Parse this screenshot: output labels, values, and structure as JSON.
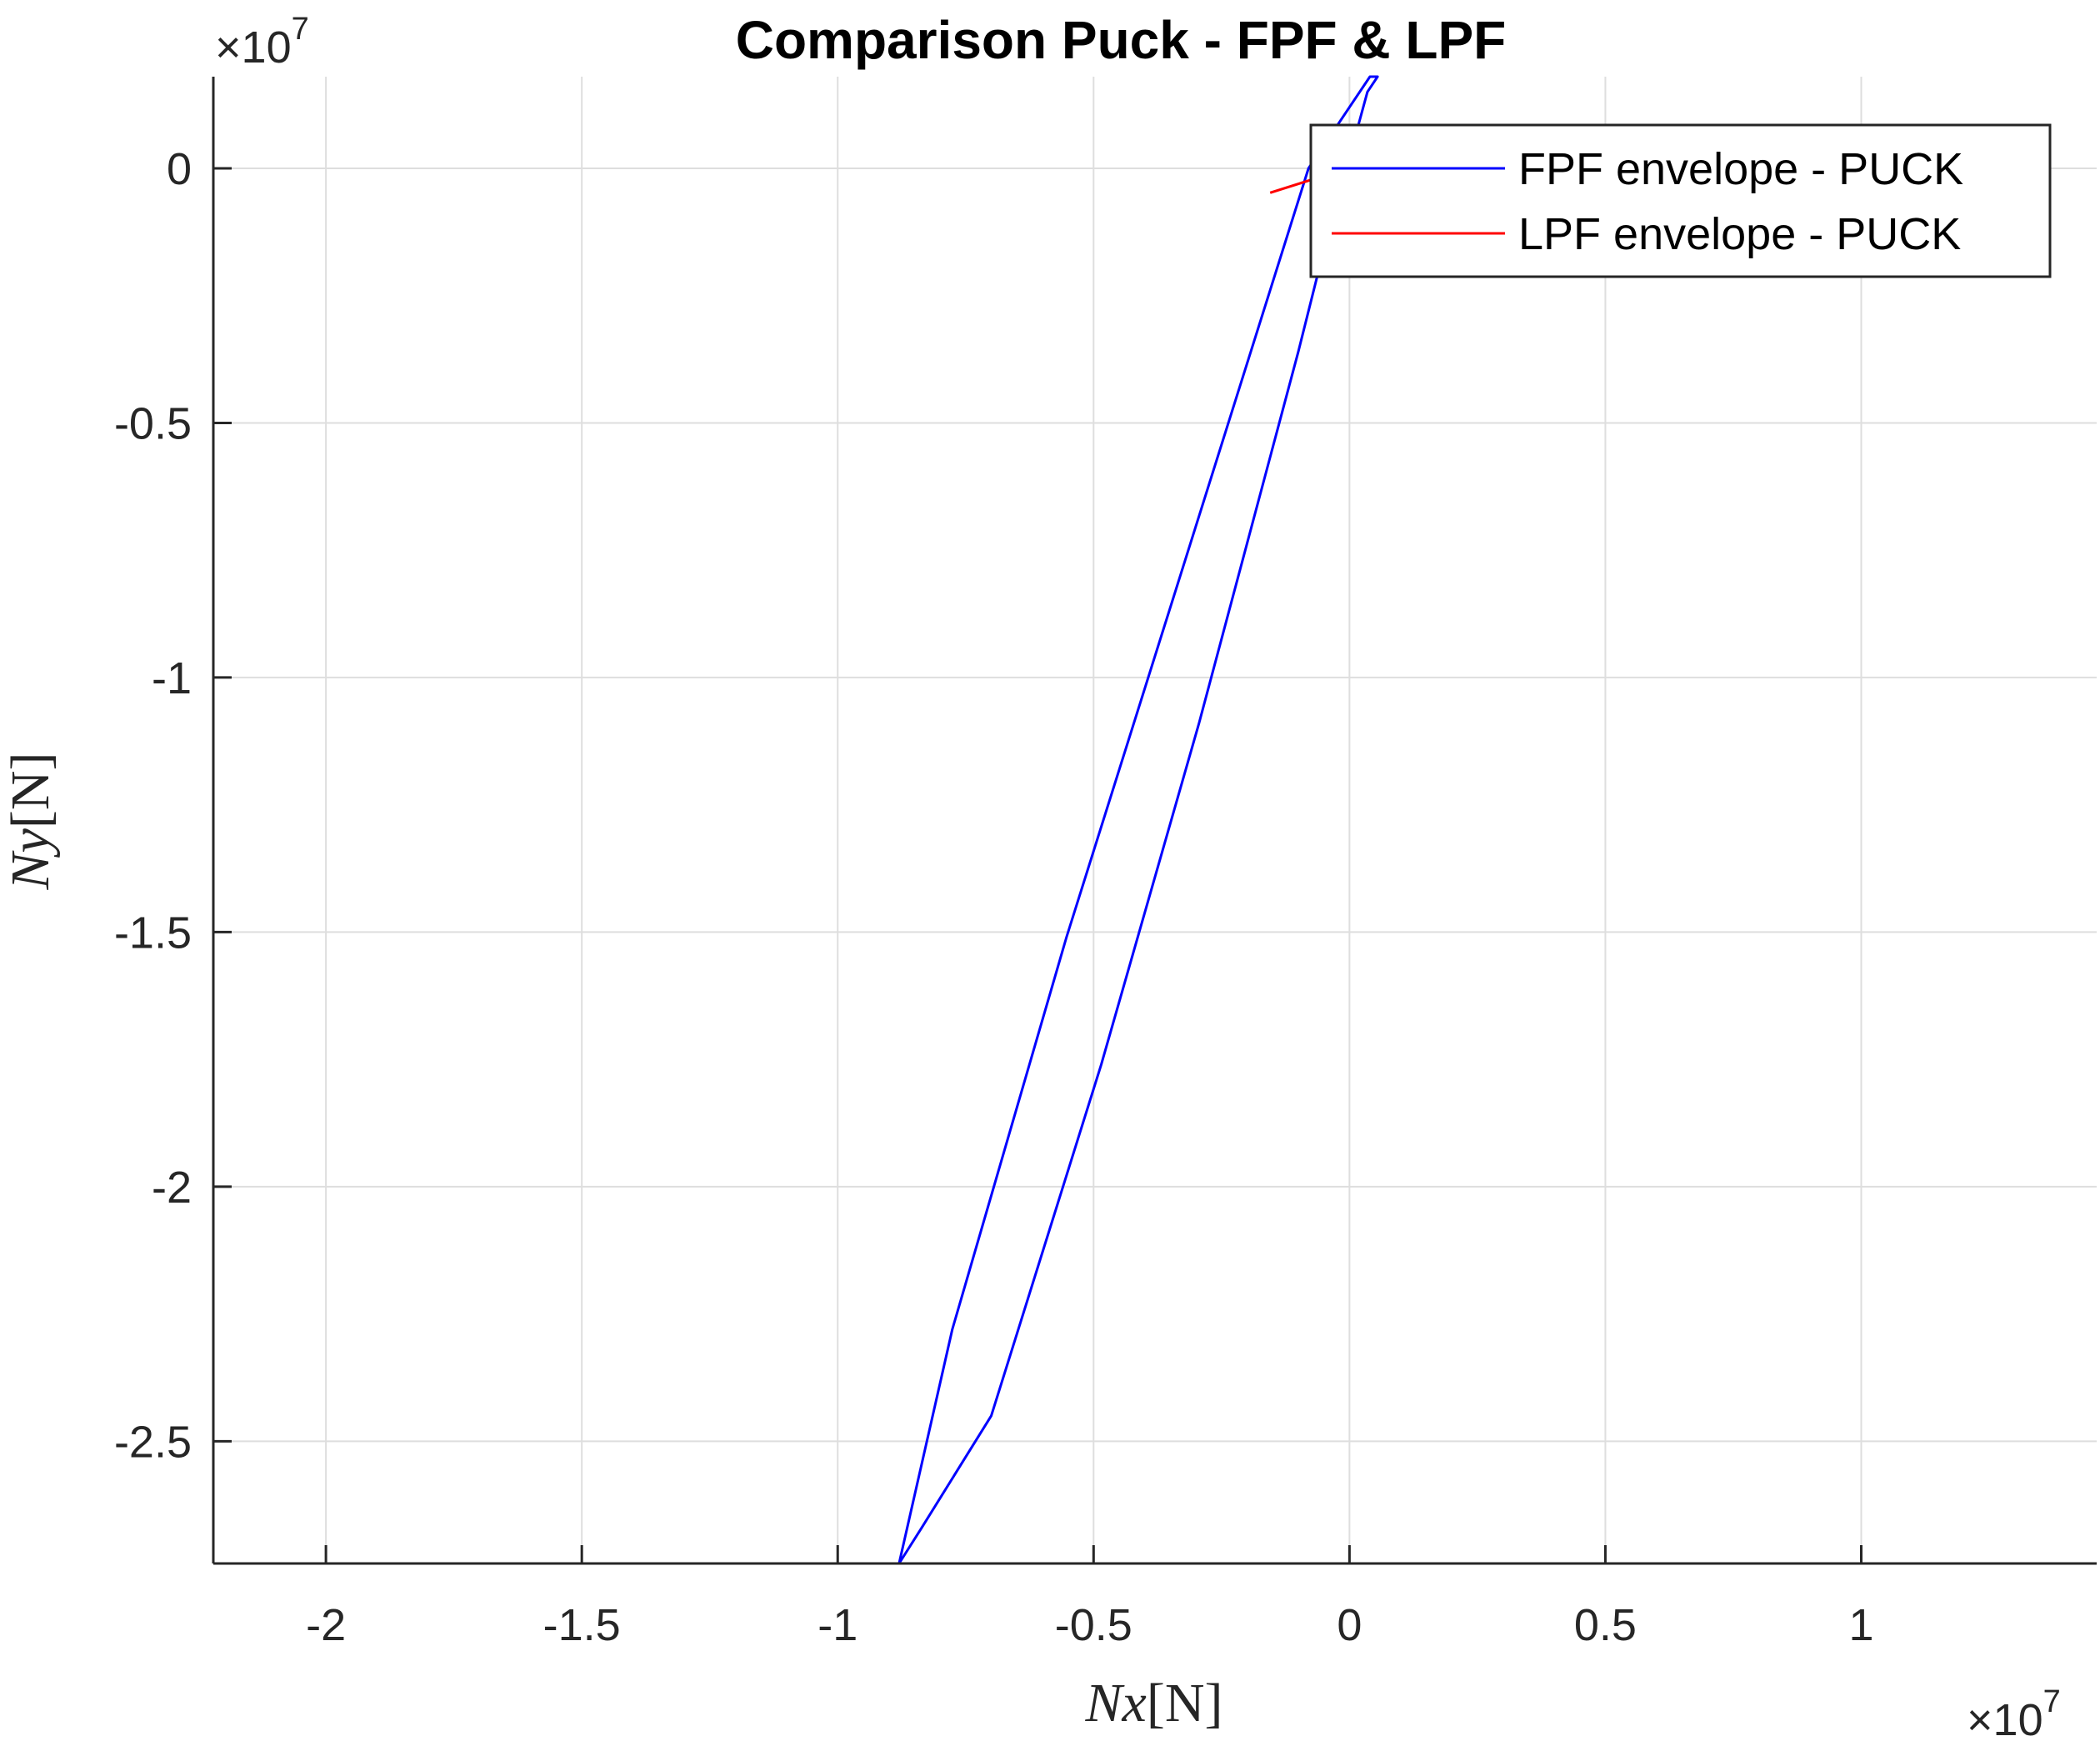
{
  "chart_data": {
    "type": "line",
    "title": "Comparison Puck - FPF & LPF",
    "xlabel": "Nx[N]",
    "ylabel": "Ny[N]",
    "x_exponent": "×10",
    "x_exponent_power": "7",
    "y_exponent": "×10",
    "y_exponent_power": "7",
    "xlim": [
      -2.22,
      1.46
    ],
    "ylim": [
      -2.74,
      0.18
    ],
    "xticks": [
      -2,
      -1.5,
      -1,
      -0.5,
      0,
      0.5,
      1
    ],
    "xtick_labels": [
      "-2",
      "-1.5",
      "-1",
      "-0.5",
      "0",
      "0.5",
      "1"
    ],
    "yticks": [
      0,
      -0.5,
      -1,
      -1.5,
      -2,
      -2.5
    ],
    "ytick_labels": [
      "0",
      "-0.5",
      "-1",
      "-1.5",
      "-2",
      "-2.5"
    ],
    "grid": true,
    "legend_position": "top-right",
    "colors": {
      "FPF": "#0000ff",
      "LPF": "#ff0000",
      "grid": "#dedede",
      "axes": "#262626"
    },
    "series": [
      {
        "name": "FPF envelope - PUCK",
        "color": "#0000ff",
        "x": [
          -0.88,
          -0.776,
          -0.553,
          -0.08,
          0.04,
          0.055,
          0.035,
          -0.06,
          -0.1,
          -0.294,
          -0.485,
          -0.7,
          -0.836,
          -0.88
        ],
        "y": [
          -2.74,
          -2.28,
          -1.51,
          0.0,
          0.18,
          0.18,
          0.15,
          -0.2,
          -0.36,
          -1.09,
          -1.76,
          -2.45,
          -2.67,
          -2.74
        ]
      },
      {
        "name": "LPF envelope - PUCK",
        "color": "#ff0000",
        "x": [
          -0.155,
          -0.06,
          -0.02,
          -0.155
        ],
        "y": [
          -0.048,
          -0.018,
          -0.005,
          -0.048
        ]
      }
    ]
  }
}
